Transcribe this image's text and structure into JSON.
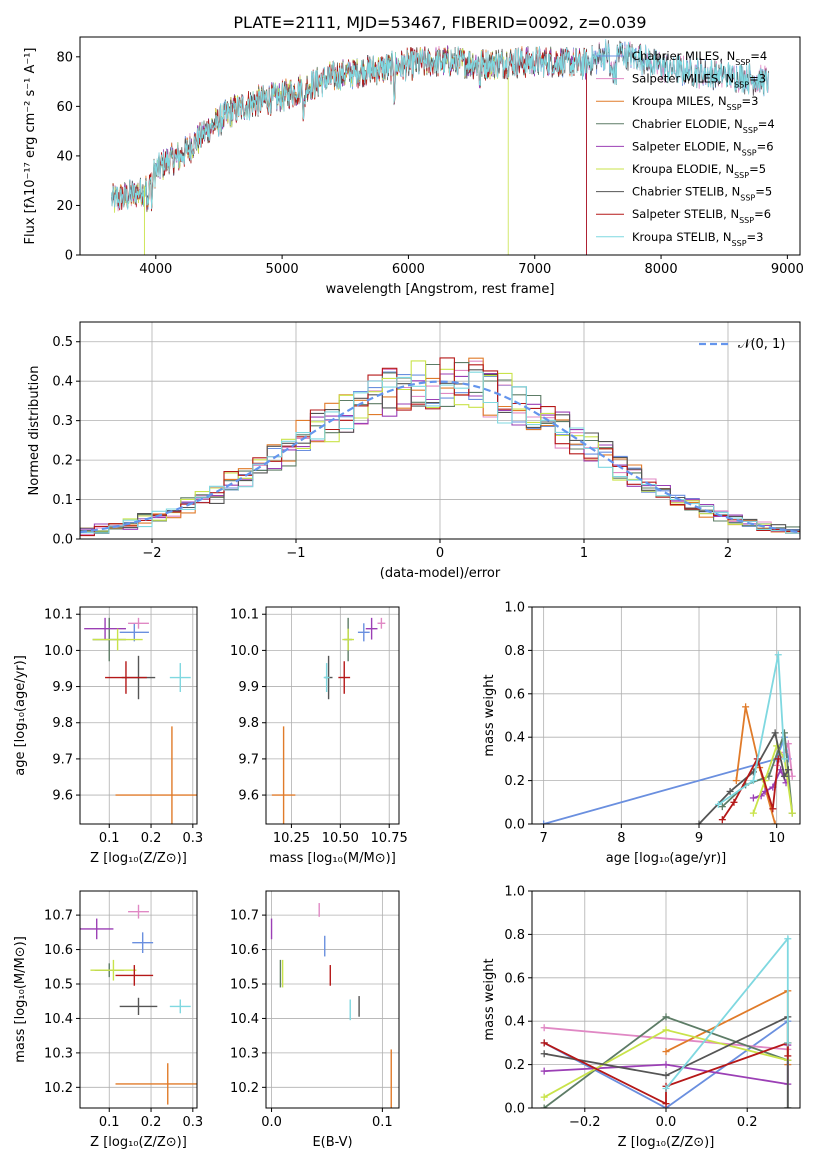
{
  "colors": {
    "chabrier_miles": "#6a8fdf",
    "salpeter_miles": "#e088c4",
    "kroupa_miles": "#e07b2a",
    "chabrier_elodie": "#5d7c66",
    "salpeter_elodie": "#9b3fb5",
    "kroupa_elodie": "#c9e34a",
    "chabrier_stelib": "#555555",
    "salpeter_stelib": "#b51818",
    "kroupa_stelib": "#7fd8e0",
    "gaussian": "#6495ed"
  },
  "chart_data": [
    {
      "id": "spectrum",
      "type": "line",
      "title": "PLATE=2111, MJD=53467, FIBERID=0092, z=0.039",
      "xlabel": "wavelength [Angstrom, rest frame]",
      "ylabel": "Flux [fλ10⁻¹⁷ erg cm⁻² s⁻¹ A⁻¹]",
      "xlim": [
        3400,
        9100
      ],
      "ylim": [
        0,
        88
      ],
      "xticks": [
        "4000",
        "5000",
        "6000",
        "7000",
        "8000",
        "9000"
      ],
      "yticks": [
        "0",
        "20",
        "40",
        "60",
        "80"
      ],
      "legend_position": "right",
      "series": [
        {
          "name": "Chabrier MILES, N_SSP=4",
          "color_key": "chabrier_miles",
          "x_end": 8850
        },
        {
          "name": "Salpeter MILES, N_SSP=3",
          "color_key": "salpeter_miles",
          "x_end": 8850
        },
        {
          "name": "Kroupa MILES, N_SSP=3",
          "color_key": "kroupa_miles",
          "x_end": 7410
        },
        {
          "name": "Chabrier ELODIE, N_SSP=4",
          "color_key": "chabrier_elodie",
          "x_end": 7410
        },
        {
          "name": "Salpeter ELODIE, N_SSP=6",
          "color_key": "salpeter_elodie",
          "x_end": 7410
        },
        {
          "name": "Kroupa ELODIE, N_SSP=5",
          "color_key": "kroupa_elodie",
          "x_end": 6790
        },
        {
          "name": "Chabrier STELIB, N_SSP=5",
          "color_key": "chabrier_stelib",
          "x_end": 8850
        },
        {
          "name": "Salpeter STELIB, N_SSP=6",
          "color_key": "salpeter_stelib",
          "x_end": 7410
        },
        {
          "name": "Kroupa STELIB, N_SSP=3",
          "color_key": "kroupa_stelib",
          "x_end": 8850
        }
      ],
      "continuum": {
        "x": [
          3650,
          3800,
          3900,
          4000,
          4100,
          4200,
          4400,
          4600,
          4800,
          5000,
          5200,
          5400,
          5600,
          5800,
          6000,
          6200,
          6400,
          6600,
          6800,
          7000,
          7200,
          7400,
          7600,
          7800,
          8000,
          8200,
          8400,
          8600,
          8850
        ],
        "y": [
          22,
          24,
          26,
          34,
          38,
          40,
          50,
          58,
          62,
          64,
          68,
          72,
          74,
          75,
          77,
          78,
          78,
          77,
          78,
          78,
          78,
          77,
          82,
          80,
          76,
          74,
          73,
          72,
          70
        ]
      },
      "dropouts_x": [
        3910,
        6790,
        7410
      ]
    },
    {
      "id": "residual_histograms",
      "type": "line",
      "xlabel": "(data-model)/error",
      "ylabel": "Normed distribution",
      "xlim": [
        -2.5,
        2.5
      ],
      "ylim": [
        0,
        0.55
      ],
      "xticks": [
        "−2",
        "−1",
        "0",
        "1",
        "2"
      ],
      "yticks": [
        "0.0",
        "0.1",
        "0.2",
        "0.3",
        "0.4",
        "0.5"
      ],
      "legend_position": "upper right",
      "legend_label": "𝒩(0, 1)",
      "bin_width": 0.1,
      "histogram_note": "nine step histograms of the residuals, one per SSP model, scattered around N(0,1)",
      "gaussian": {
        "mean": 0,
        "sigma": 1
      }
    },
    {
      "id": "age_vs_Z",
      "type": "scatter",
      "xlabel": "Z [log₁₀(Z/Z⊙)]",
      "ylabel": "age  [log₁₀(age/yr)]",
      "xlim": [
        0.03,
        0.31
      ],
      "ylim": [
        9.52,
        10.12
      ],
      "xticks": [
        "0.1",
        "0.2",
        "0.3"
      ],
      "yticks": [
        "9.6",
        "9.7",
        "9.8",
        "9.9",
        "10.0",
        "10.1"
      ],
      "points": [
        {
          "color_key": "chabrier_miles",
          "x": 0.16,
          "y": 10.05,
          "xerr": 0.035,
          "yerr": 0.025
        },
        {
          "color_key": "salpeter_miles",
          "x": 0.17,
          "y": 10.075,
          "xerr": 0.025,
          "yerr": 0.015
        },
        {
          "color_key": "kroupa_miles",
          "x": 0.25,
          "y": 9.6,
          "xerr": 0.135,
          "yerr": 0.19
        },
        {
          "color_key": "chabrier_elodie",
          "x": 0.1,
          "y": 10.03,
          "xerr": 0.04,
          "yerr": 0.06
        },
        {
          "color_key": "salpeter_elodie",
          "x": 0.09,
          "y": 10.06,
          "xerr": 0.05,
          "yerr": 0.03
        },
        {
          "color_key": "kroupa_elodie",
          "x": 0.12,
          "y": 10.03,
          "xerr": 0.06,
          "yerr": 0.03
        },
        {
          "color_key": "chabrier_stelib",
          "x": 0.17,
          "y": 9.925,
          "xerr": 0.04,
          "yerr": 0.06
        },
        {
          "color_key": "salpeter_stelib",
          "x": 0.14,
          "y": 9.925,
          "xerr": 0.05,
          "yerr": 0.045
        },
        {
          "color_key": "kroupa_stelib",
          "x": 0.27,
          "y": 9.925,
          "xerr": 0.025,
          "yerr": 0.04
        }
      ]
    },
    {
      "id": "age_vs_mass",
      "type": "scatter",
      "xlabel": "mass [log₁₀(M/M⊙)]",
      "ylabel": "",
      "xlim": [
        10.12,
        10.8
      ],
      "ylim": [
        9.52,
        10.12
      ],
      "xticks": [
        "10.25",
        "10.50",
        "10.75"
      ],
      "yticks": [
        "9.6",
        "9.7",
        "9.8",
        "9.9",
        "10.0",
        "10.1"
      ],
      "points": [
        {
          "color_key": "chabrier_miles",
          "x": 10.62,
          "y": 10.05,
          "xerr": 0.03,
          "yerr": 0.025
        },
        {
          "color_key": "salpeter_miles",
          "x": 10.71,
          "y": 10.075,
          "xerr": 0.02,
          "yerr": 0.015
        },
        {
          "color_key": "kroupa_miles",
          "x": 10.21,
          "y": 9.6,
          "xerr": 0.06,
          "yerr": 0.19
        },
        {
          "color_key": "chabrier_elodie",
          "x": 10.54,
          "y": 10.03,
          "xerr": 0.02,
          "yerr": 0.06
        },
        {
          "color_key": "salpeter_elodie",
          "x": 10.66,
          "y": 10.06,
          "xerr": 0.03,
          "yerr": 0.03
        },
        {
          "color_key": "kroupa_elodie",
          "x": 10.54,
          "y": 10.03,
          "xerr": 0.03,
          "yerr": 0.03
        },
        {
          "color_key": "chabrier_stelib",
          "x": 10.44,
          "y": 9.925,
          "xerr": 0.02,
          "yerr": 0.06
        },
        {
          "color_key": "salpeter_stelib",
          "x": 10.52,
          "y": 9.925,
          "xerr": 0.03,
          "yerr": 0.045
        },
        {
          "color_key": "kroupa_stelib",
          "x": 10.43,
          "y": 9.925,
          "xerr": 0.015,
          "yerr": 0.04
        }
      ]
    },
    {
      "id": "mass_weight_vs_age",
      "type": "line",
      "xlabel": "age  [log₁₀(age/yr)]",
      "ylabel": "mass weight",
      "xlim": [
        6.85,
        10.3
      ],
      "ylim": [
        0,
        1.0
      ],
      "xticks": [
        "7",
        "8",
        "9",
        "10"
      ],
      "yticks": [
        "0.0",
        "0.2",
        "0.4",
        "0.6",
        "0.8",
        "1.0"
      ],
      "series": [
        {
          "color_key": "chabrier_miles",
          "x": [
            7.0,
            10.0,
            10.1,
            10.15
          ],
          "y": [
            0.0,
            0.3,
            0.4,
            0.3
          ]
        },
        {
          "color_key": "salpeter_miles",
          "x": [
            10.0,
            10.1,
            10.15,
            10.2
          ],
          "y": [
            0.27,
            0.33,
            0.37,
            0.22
          ]
        },
        {
          "color_key": "kroupa_miles",
          "x": [
            9.48,
            9.6,
            9.78,
            9.98
          ],
          "y": [
            0.2,
            0.54,
            0.26,
            0.0
          ]
        },
        {
          "color_key": "chabrier_elodie",
          "x": [
            9.3,
            9.6,
            9.9,
            10.1,
            10.2
          ],
          "y": [
            0.08,
            0.18,
            0.22,
            0.42,
            0.05
          ]
        },
        {
          "color_key": "salpeter_elodie",
          "x": [
            9.7,
            9.8,
            9.85,
            9.95,
            10.05,
            10.12
          ],
          "y": [
            0.12,
            0.13,
            0.15,
            0.17,
            0.25,
            0.19
          ]
        },
        {
          "color_key": "kroupa_elodie",
          "x": [
            9.7,
            9.85,
            10.0,
            10.1,
            10.2
          ],
          "y": [
            0.05,
            0.2,
            0.36,
            0.3,
            0.05
          ]
        },
        {
          "color_key": "chabrier_stelib",
          "x": [
            9.0,
            9.4,
            9.7,
            9.98,
            10.1,
            10.15
          ],
          "y": [
            0.0,
            0.15,
            0.24,
            0.42,
            0.22,
            0.25
          ]
        },
        {
          "color_key": "salpeter_stelib",
          "x": [
            9.3,
            9.45,
            9.75,
            9.95,
            10.02
          ],
          "y": [
            0.02,
            0.1,
            0.3,
            0.07,
            0.3
          ]
        },
        {
          "color_key": "kroupa_stelib",
          "x": [
            9.25,
            9.7,
            10.02,
            10.1
          ],
          "y": [
            0.09,
            0.2,
            0.78,
            0.3
          ]
        }
      ]
    },
    {
      "id": "mass_vs_Z",
      "type": "scatter",
      "xlabel": "Z [log₁₀(Z/Z⊙)]",
      "ylabel": "mass [log₁₀(M/M⊙)]",
      "xlim": [
        0.03,
        0.31
      ],
      "ylim": [
        10.14,
        10.77
      ],
      "xticks": [
        "0.1",
        "0.2",
        "0.3"
      ],
      "yticks": [
        "10.2",
        "10.3",
        "10.4",
        "10.5",
        "10.6",
        "10.7"
      ],
      "points": [
        {
          "color_key": "chabrier_miles",
          "x": 0.18,
          "y": 10.62,
          "xerr": 0.025,
          "yerr": 0.03
        },
        {
          "color_key": "salpeter_miles",
          "x": 0.17,
          "y": 10.71,
          "xerr": 0.025,
          "yerr": 0.02
        },
        {
          "color_key": "kroupa_miles",
          "x": 0.24,
          "y": 10.21,
          "xerr": 0.125,
          "yerr": 0.06
        },
        {
          "color_key": "chabrier_elodie",
          "x": 0.1,
          "y": 10.54,
          "xerr": 0.035,
          "yerr": 0.02
        },
        {
          "color_key": "salpeter_elodie",
          "x": 0.07,
          "y": 10.66,
          "xerr": 0.04,
          "yerr": 0.03
        },
        {
          "color_key": "kroupa_elodie",
          "x": 0.11,
          "y": 10.54,
          "xerr": 0.055,
          "yerr": 0.03
        },
        {
          "color_key": "chabrier_stelib",
          "x": 0.17,
          "y": 10.435,
          "xerr": 0.045,
          "yerr": 0.025
        },
        {
          "color_key": "salpeter_stelib",
          "x": 0.16,
          "y": 10.525,
          "xerr": 0.045,
          "yerr": 0.03
        },
        {
          "color_key": "kroupa_stelib",
          "x": 0.27,
          "y": 10.435,
          "xerr": 0.025,
          "yerr": 0.02
        }
      ]
    },
    {
      "id": "mass_vs_ebv",
      "type": "scatter",
      "xlabel": "E(B-V)",
      "ylabel": "",
      "xlim": [
        -0.005,
        0.115
      ],
      "ylim": [
        10.14,
        10.77
      ],
      "xticks": [
        "0.0",
        "0.1"
      ],
      "yticks": [
        "10.2",
        "10.3",
        "10.4",
        "10.5",
        "10.6",
        "10.7"
      ],
      "points": [
        {
          "color_key": "chabrier_miles",
          "x": 0.048,
          "y": 10.61,
          "yerr": 0.03
        },
        {
          "color_key": "salpeter_miles",
          "x": 0.043,
          "y": 10.715,
          "yerr": 0.02
        },
        {
          "color_key": "kroupa_miles",
          "x": 0.108,
          "y": 10.21,
          "yerr": 0.1
        },
        {
          "color_key": "chabrier_elodie",
          "x": 0.008,
          "y": 10.53,
          "yerr": 0.04
        },
        {
          "color_key": "salpeter_elodie",
          "x": 0.0,
          "y": 10.66,
          "yerr": 0.03
        },
        {
          "color_key": "kroupa_elodie",
          "x": 0.01,
          "y": 10.53,
          "yerr": 0.04
        },
        {
          "color_key": "chabrier_stelib",
          "x": 0.079,
          "y": 10.435,
          "yerr": 0.03
        },
        {
          "color_key": "salpeter_stelib",
          "x": 0.053,
          "y": 10.525,
          "yerr": 0.03
        },
        {
          "color_key": "kroupa_stelib",
          "x": 0.071,
          "y": 10.425,
          "yerr": 0.03
        }
      ]
    },
    {
      "id": "mass_weight_vs_Z",
      "type": "line",
      "xlabel": "Z [log₁₀(Z/Z⊙)]",
      "ylabel": "mass weight",
      "xlim": [
        -0.33,
        0.33
      ],
      "ylim": [
        0,
        1.0
      ],
      "xticks": [
        "−0.2",
        "0.0",
        "0.2"
      ],
      "yticks": [
        "0.0",
        "0.2",
        "0.4",
        "0.6",
        "0.8",
        "1.0"
      ],
      "series": [
        {
          "color_key": "chabrier_miles",
          "x": [
            -0.3,
            0.0,
            0.3
          ],
          "y": [
            0.3,
            0.0,
            0.4
          ]
        },
        {
          "color_key": "salpeter_miles",
          "x": [
            -0.3,
            0.3
          ],
          "y": [
            0.37,
            0.27
          ]
        },
        {
          "color_key": "kroupa_miles",
          "x": [
            0.0,
            0.3,
            0.3
          ],
          "y": [
            0.26,
            0.54,
            0.2
          ]
        },
        {
          "color_key": "chabrier_elodie",
          "x": [
            -0.3,
            0.0,
            0.3,
            0.3
          ],
          "y": [
            0.0,
            0.42,
            0.22,
            0.0
          ]
        },
        {
          "color_key": "salpeter_elodie",
          "x": [
            -0.3,
            0.0,
            0.3,
            0.3
          ],
          "y": [
            0.17,
            0.2,
            0.11,
            0.29
          ]
        },
        {
          "color_key": "kroupa_elodie",
          "x": [
            -0.3,
            0.0,
            0.3,
            0.3
          ],
          "y": [
            0.05,
            0.36,
            0.22,
            0.3
          ]
        },
        {
          "color_key": "chabrier_stelib",
          "x": [
            -0.3,
            0.0,
            0.3,
            0.3
          ],
          "y": [
            0.25,
            0.15,
            0.42,
            0.0
          ]
        },
        {
          "color_key": "salpeter_stelib",
          "x": [
            -0.3,
            0.0,
            0.0,
            0.3,
            0.3
          ],
          "y": [
            0.3,
            0.02,
            0.1,
            0.3,
            0.24
          ]
        },
        {
          "color_key": "kroupa_stelib",
          "x": [
            0.0,
            0.3,
            0.3
          ],
          "y": [
            0.09,
            0.78,
            0.3
          ]
        }
      ]
    }
  ]
}
